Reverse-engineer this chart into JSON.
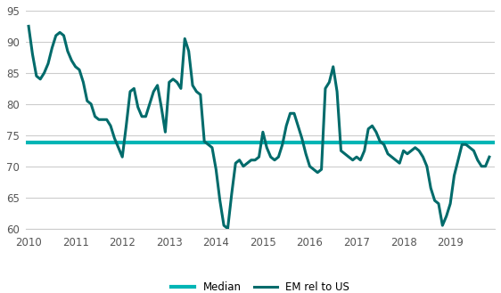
{
  "title": "",
  "em_color": "#006b6b",
  "median_color": "#00b5b5",
  "median_value": 73.8,
  "ylim": [
    60,
    95
  ],
  "yticks": [
    60,
    65,
    70,
    75,
    80,
    85,
    90,
    95
  ],
  "xlim_start": 2009.95,
  "xlim_end": 2019.95,
  "xtick_labels": [
    "2010",
    "2011",
    "2012",
    "2013",
    "2014",
    "2015",
    "2016",
    "2017",
    "2018",
    "2019"
  ],
  "legend_em_label": "EM rel to US",
  "legend_median_label": "Median",
  "background_color": "#ffffff",
  "grid_color": "#cccccc",
  "em_linewidth": 2.2,
  "median_linewidth": 3.0,
  "x": [
    2010.0,
    2010.083,
    2010.167,
    2010.25,
    2010.333,
    2010.417,
    2010.5,
    2010.583,
    2010.667,
    2010.75,
    2010.833,
    2010.917,
    2011.0,
    2011.083,
    2011.167,
    2011.25,
    2011.333,
    2011.417,
    2011.5,
    2011.583,
    2011.667,
    2011.75,
    2011.833,
    2011.917,
    2012.0,
    2012.083,
    2012.167,
    2012.25,
    2012.333,
    2012.417,
    2012.5,
    2012.583,
    2012.667,
    2012.75,
    2012.833,
    2012.917,
    2013.0,
    2013.083,
    2013.167,
    2013.25,
    2013.333,
    2013.417,
    2013.5,
    2013.583,
    2013.667,
    2013.75,
    2013.833,
    2013.917,
    2014.0,
    2014.083,
    2014.167,
    2014.25,
    2014.333,
    2014.417,
    2014.5,
    2014.583,
    2014.667,
    2014.75,
    2014.833,
    2014.917,
    2015.0,
    2015.083,
    2015.167,
    2015.25,
    2015.333,
    2015.417,
    2015.5,
    2015.583,
    2015.667,
    2015.75,
    2015.833,
    2015.917,
    2016.0,
    2016.083,
    2016.167,
    2016.25,
    2016.333,
    2016.417,
    2016.5,
    2016.583,
    2016.667,
    2016.75,
    2016.833,
    2016.917,
    2017.0,
    2017.083,
    2017.167,
    2017.25,
    2017.333,
    2017.417,
    2017.5,
    2017.583,
    2017.667,
    2017.75,
    2017.833,
    2017.917,
    2018.0,
    2018.083,
    2018.167,
    2018.25,
    2018.333,
    2018.417,
    2018.5,
    2018.583,
    2018.667,
    2018.75,
    2018.833,
    2018.917,
    2019.0,
    2019.083,
    2019.167,
    2019.25,
    2019.333,
    2019.417,
    2019.5,
    2019.583,
    2019.667,
    2019.75,
    2019.833
  ],
  "y": [
    92.5,
    88.0,
    84.5,
    84.0,
    85.0,
    86.5,
    89.0,
    91.0,
    91.5,
    91.0,
    88.5,
    87.0,
    86.0,
    85.5,
    83.5,
    80.5,
    80.0,
    78.0,
    77.5,
    77.5,
    77.5,
    76.5,
    74.5,
    73.0,
    71.5,
    76.5,
    82.0,
    82.5,
    79.5,
    78.0,
    78.0,
    80.0,
    82.0,
    83.0,
    79.5,
    75.5,
    83.5,
    84.0,
    83.5,
    82.5,
    90.5,
    88.5,
    83.0,
    82.0,
    81.5,
    74.0,
    73.5,
    73.0,
    69.5,
    64.5,
    60.5,
    60.0,
    65.5,
    70.5,
    71.0,
    70.0,
    70.5,
    71.0,
    71.0,
    71.5,
    75.5,
    73.0,
    71.5,
    71.0,
    71.5,
    73.5,
    76.5,
    78.5,
    78.5,
    76.5,
    74.5,
    72.0,
    70.0,
    69.5,
    69.0,
    69.5,
    82.5,
    83.5,
    86.0,
    82.0,
    72.5,
    72.0,
    71.5,
    71.0,
    71.5,
    71.0,
    72.5,
    76.0,
    76.5,
    75.5,
    74.0,
    73.5,
    72.0,
    71.5,
    71.0,
    70.5,
    72.5,
    72.0,
    72.5,
    73.0,
    72.5,
    71.5,
    70.0,
    66.5,
    64.5,
    64.0,
    60.5,
    62.0,
    64.0,
    68.5,
    71.0,
    73.5,
    73.5,
    73.0,
    72.5,
    71.0,
    70.0,
    70.0,
    71.5
  ]
}
